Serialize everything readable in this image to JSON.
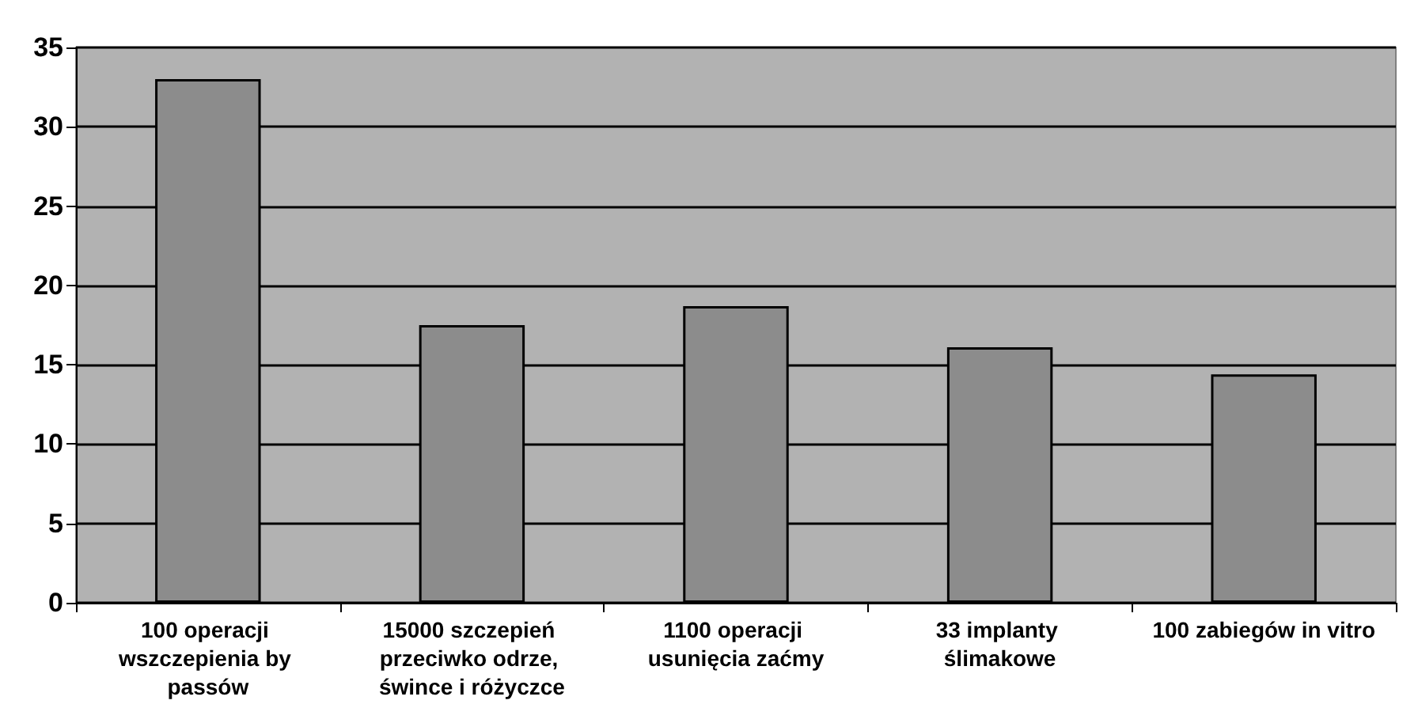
{
  "chart_data": {
    "type": "bar",
    "categories": [
      "100 operacji wszczepienia by passów",
      "15000 szczepień przeciwko odrze, śwince i różyczce",
      "1100 operacji usunięcia zaćmy",
      "33 implanty ślimakowe",
      "100 zabiegów in vitro"
    ],
    "values": [
      33,
      17.5,
      18.7,
      16.1,
      14.4
    ],
    "color": "#8c8c8c",
    "ylim": [
      0,
      35
    ],
    "yticks": [
      0,
      5,
      10,
      15,
      20,
      25,
      30,
      35
    ],
    "grid": "y"
  }
}
